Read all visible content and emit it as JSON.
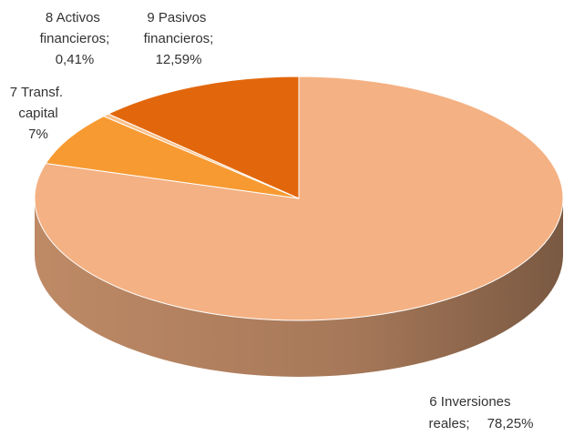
{
  "chart_data": {
    "type": "pie3d",
    "categories": [
      "6 Inversiones reales;",
      "7 Transf. capital",
      "8 Activos financieros;",
      "9 Pasivos financieros;"
    ],
    "values": [
      78.25,
      7,
      0.41,
      12.59
    ],
    "value_labels": [
      "78,25%",
      "7%",
      "0,41%",
      "12,59%"
    ],
    "colors": [
      "#F4B183",
      "#F79A32",
      "#FBC08A",
      "#E2670C"
    ]
  }
}
